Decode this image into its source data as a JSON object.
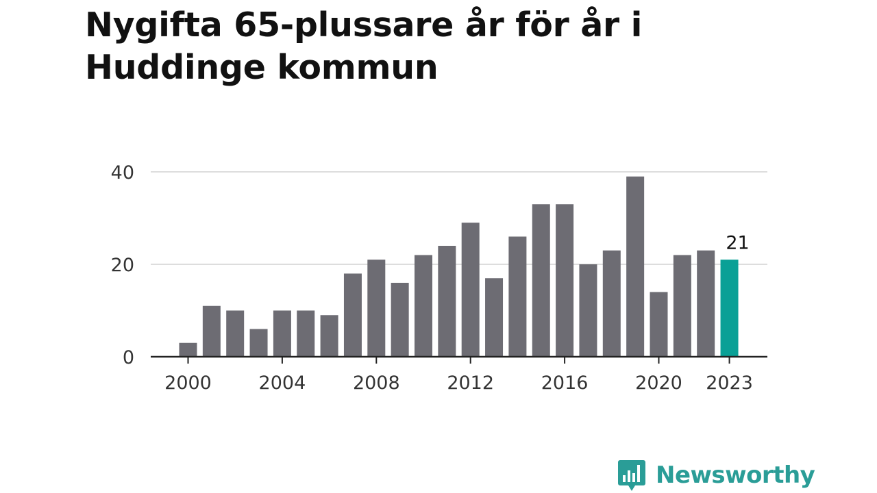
{
  "title": "Nygifta 65-plussare år för år i Huddinge kommun",
  "brand": {
    "name": "Newsworthy",
    "icon": "newsworthy-logo-icon",
    "color": "#2a9d97"
  },
  "colors": {
    "bar": "#6d6c73",
    "highlight": "#0aa096",
    "grid": "#dddddd",
    "axis": "#222222"
  },
  "chart_data": {
    "type": "bar",
    "title": "Nygifta 65-plussare år för år i Huddinge kommun",
    "xlabel": "",
    "ylabel": "",
    "categories": [
      "2000",
      "2001",
      "2002",
      "2003",
      "2004",
      "2005",
      "2006",
      "2007",
      "2008",
      "2009",
      "2010",
      "2011",
      "2012",
      "2013",
      "2014",
      "2015",
      "2016",
      "2017",
      "2018",
      "2019",
      "2020",
      "2021",
      "2022",
      "2023"
    ],
    "values": [
      3,
      11,
      10,
      6,
      10,
      10,
      9,
      18,
      21,
      16,
      22,
      24,
      29,
      17,
      26,
      33,
      33,
      20,
      23,
      39,
      14,
      22,
      23,
      21
    ],
    "ylim": [
      0,
      40
    ],
    "yticks": [
      0,
      20,
      40
    ],
    "xticks": [
      "2000",
      "2004",
      "2008",
      "2012",
      "2016",
      "2020",
      "2023"
    ],
    "highlight": {
      "category": "2023",
      "label": "21"
    },
    "grid": true
  }
}
